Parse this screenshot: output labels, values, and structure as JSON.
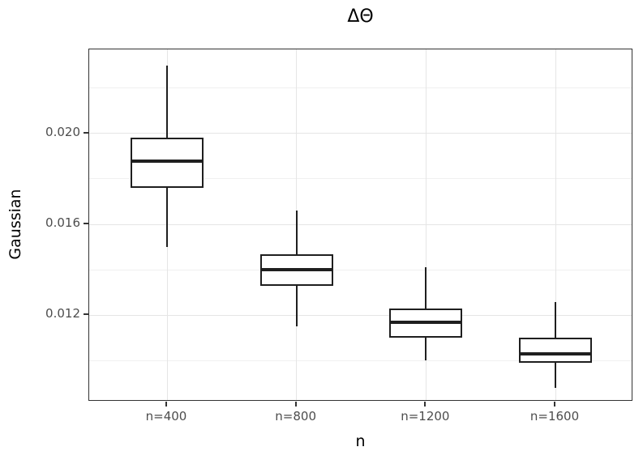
{
  "title": "ΔΘ",
  "chart_data": {
    "type": "boxplot",
    "title": "ΔΘ",
    "xlabel": "n",
    "ylabel": "Gaussian",
    "categories": [
      "n=400",
      "n=800",
      "n=1200",
      "n=1600"
    ],
    "boxes": [
      {
        "category": "n=400",
        "whisker_low": 0.015,
        "q1": 0.0176,
        "median": 0.0188,
        "q3": 0.0198,
        "whisker_high": 0.023
      },
      {
        "category": "n=800",
        "whisker_low": 0.0115,
        "q1": 0.0133,
        "median": 0.014,
        "q3": 0.0147,
        "whisker_high": 0.0166
      },
      {
        "category": "n=1200",
        "whisker_low": 0.01,
        "q1": 0.011,
        "median": 0.0117,
        "q3": 0.0123,
        "whisker_high": 0.0141
      },
      {
        "category": "n=1600",
        "whisker_low": 0.0088,
        "q1": 0.0099,
        "median": 0.0103,
        "q3": 0.011,
        "whisker_high": 0.0126
      }
    ],
    "y_ticks": [
      {
        "value": 0.02,
        "label": "0.020"
      },
      {
        "value": 0.016,
        "label": "0.016"
      },
      {
        "value": 0.012,
        "label": "0.012"
      }
    ],
    "y_minor_gridlines": [
      0.022,
      0.018,
      0.014,
      0.01
    ],
    "ylim": [
      0.0082,
      0.0237
    ],
    "grid": true,
    "legend": "none",
    "colors": {
      "box_stroke": "#1f1f1f",
      "box_fill": "#ffffff",
      "panel_border": "#333333",
      "grid_major": "#e5e5e5",
      "grid_minor": "#f0f0f0",
      "tick_label": "#4d4d4d",
      "axis_title": "#000000",
      "background": "#ffffff"
    }
  }
}
